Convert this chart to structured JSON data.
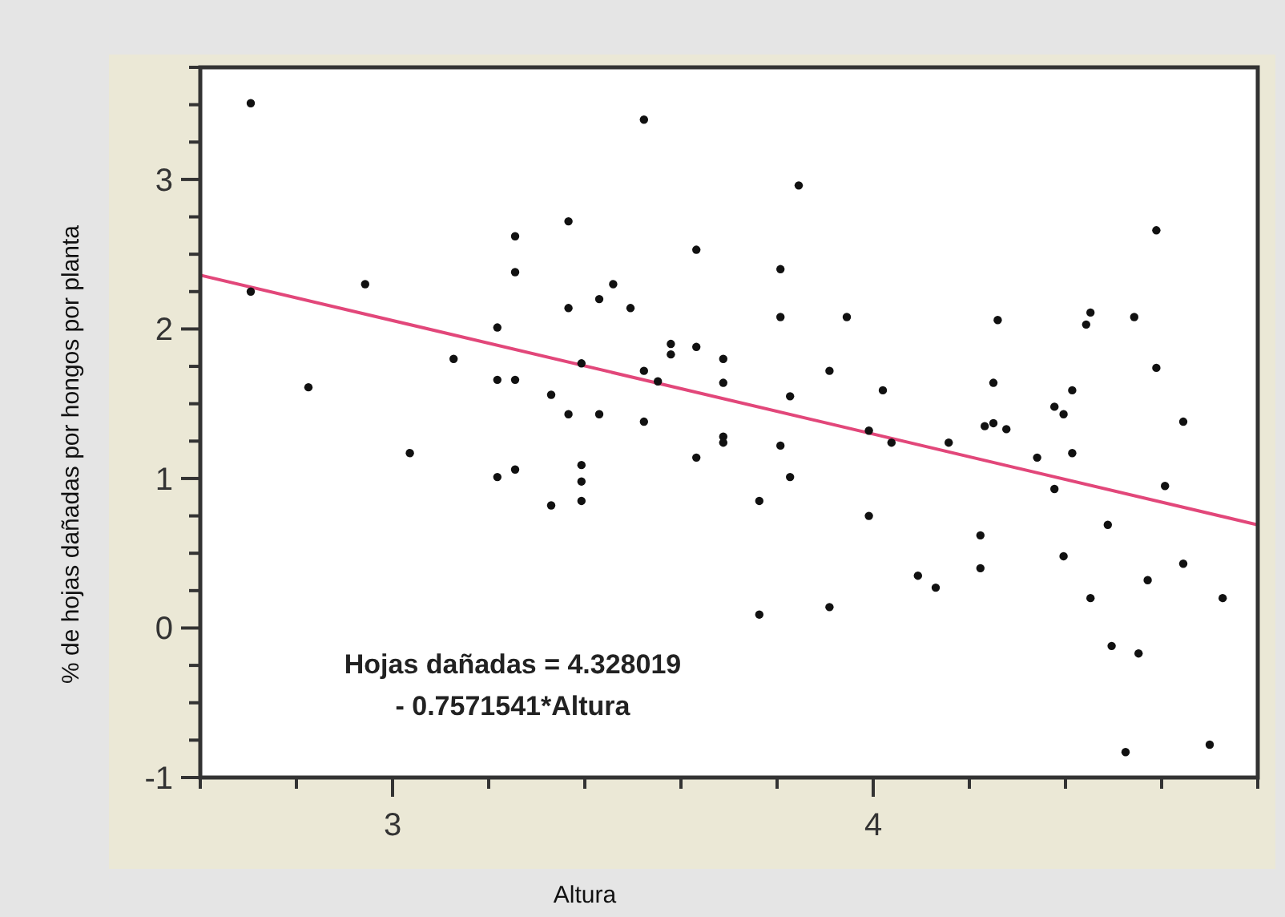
{
  "chart_data": {
    "type": "scatter",
    "xlabel": "Altura",
    "ylabel": "% de hojas dañadas por hongos por planta",
    "annotations": [
      {
        "text": "Hojas dañadas = 4.328019\n- 0.7571541*Altura"
      }
    ],
    "xlim": [
      2.6,
      4.8
    ],
    "ylim": [
      -1,
      3.75
    ],
    "xticks": [
      {
        "value": 2.6,
        "label": null
      },
      {
        "value": 2.8,
        "label": null
      },
      3,
      {
        "value": 3.2,
        "label": null
      },
      {
        "value": 3.4,
        "label": null
      },
      {
        "value": 3.6,
        "label": null
      },
      {
        "value": 3.8,
        "label": null
      },
      4,
      {
        "value": 4.2,
        "label": null
      },
      {
        "value": 4.4,
        "label": null
      },
      {
        "value": 4.6,
        "label": null
      },
      {
        "value": 4.8,
        "label": null
      }
    ],
    "yticks": [
      -1,
      {
        "value": -0.75,
        "label": null
      },
      {
        "value": -0.5,
        "label": null
      },
      {
        "value": -0.25,
        "label": null
      },
      0,
      {
        "value": 0.25,
        "label": null
      },
      {
        "value": 0.5,
        "label": null
      },
      {
        "value": 0.75,
        "label": null
      },
      1,
      {
        "value": 1.25,
        "label": null
      },
      {
        "value": 1.5,
        "label": null
      },
      {
        "value": 1.75,
        "label": null
      },
      2,
      {
        "value": 2.25,
        "label": null
      },
      {
        "value": 2.5,
        "label": null
      },
      {
        "value": 2.75,
        "label": null
      },
      3,
      {
        "value": 3.25,
        "label": null
      },
      {
        "value": 3.5,
        "label": null
      },
      {
        "value": 3.75,
        "label": null
      }
    ],
    "series": [
      {
        "marker": "circle",
        "color": "#111111",
        "x": [
          2.705,
          2.705,
          2.825,
          2.943,
          3.036,
          3.127,
          3.218,
          3.218,
          3.218,
          3.255,
          3.255,
          3.255,
          3.255,
          3.33,
          3.33,
          3.366,
          3.366,
          3.366,
          3.393,
          3.393,
          3.393,
          3.393,
          3.43,
          3.43,
          3.459,
          3.495,
          3.523,
          3.523,
          3.523,
          3.552,
          3.579,
          3.579,
          3.632,
          3.632,
          3.632,
          3.688,
          3.688,
          3.688,
          3.688,
          3.763,
          3.763,
          3.807,
          3.807,
          3.807,
          3.827,
          3.827,
          3.845,
          3.909,
          3.909,
          3.945,
          3.991,
          3.991,
          4.02,
          4.038,
          4.093,
          4.13,
          4.157,
          4.223,
          4.223,
          4.232,
          4.25,
          4.25,
          4.259,
          4.277,
          4.341,
          4.377,
          4.377,
          4.396,
          4.396,
          4.414,
          4.414,
          4.443,
          4.452,
          4.452,
          4.488,
          4.496,
          4.525,
          4.543,
          4.552,
          4.571,
          4.589,
          4.589,
          4.607,
          4.645,
          4.645,
          4.7,
          4.727
        ],
        "values": [
          3.51,
          2.25,
          1.61,
          2.3,
          1.17,
          1.8,
          2.01,
          1.66,
          1.01,
          2.62,
          2.38,
          1.66,
          1.06,
          1.56,
          0.82,
          2.72,
          2.14,
          1.43,
          1.77,
          1.09,
          0.98,
          0.85,
          2.2,
          1.43,
          2.3,
          2.14,
          3.4,
          1.72,
          1.38,
          1.65,
          1.9,
          1.83,
          2.53,
          1.88,
          1.14,
          1.8,
          1.64,
          1.28,
          1.24,
          0.85,
          0.09,
          2.4,
          2.08,
          1.22,
          1.55,
          1.01,
          2.96,
          1.72,
          0.14,
          2.08,
          1.32,
          0.75,
          1.59,
          1.24,
          0.35,
          0.27,
          1.24,
          0.62,
          0.4,
          1.35,
          1.64,
          1.37,
          2.06,
          1.33,
          1.14,
          1.48,
          0.93,
          1.43,
          0.48,
          1.59,
          1.17,
          2.03,
          2.11,
          0.2,
          0.69,
          -0.12,
          -0.83,
          2.08,
          -0.17,
          0.32,
          2.66,
          1.74,
          0.95,
          1.38,
          0.43,
          -0.78,
          0.2
        ]
      },
      {
        "type": "line",
        "color": "#e2477a",
        "x": [
          2.6,
          4.8
        ],
        "values": [
          2.36,
          0.69
        ]
      }
    ]
  }
}
